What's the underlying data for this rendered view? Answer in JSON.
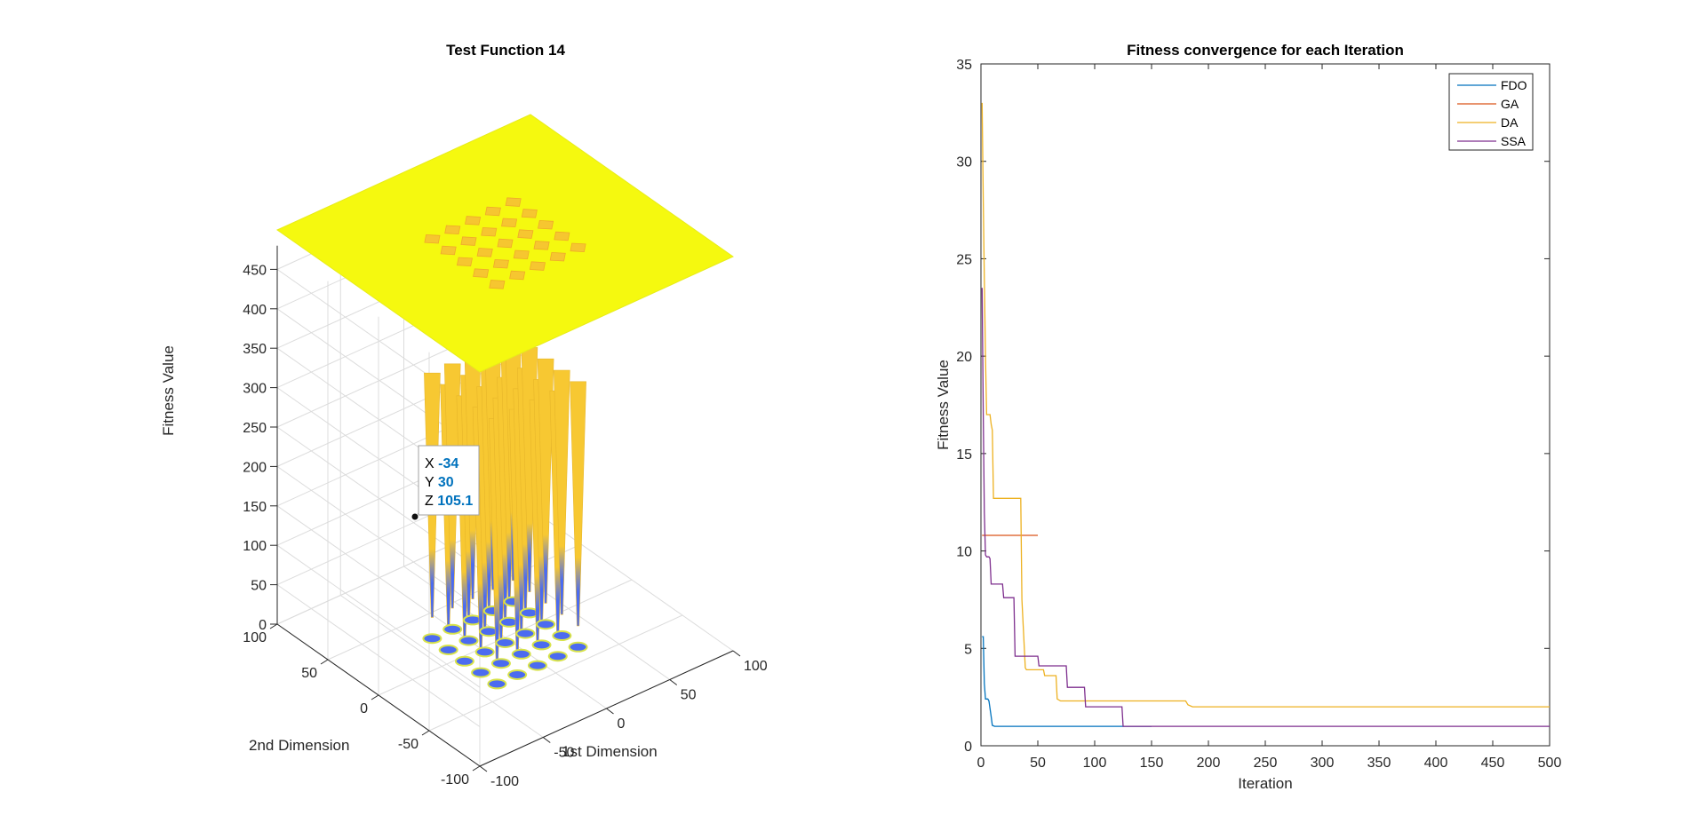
{
  "chart_data": [
    {
      "type": "surface",
      "title": "Test Function 14",
      "xlabel": "1st Dimension",
      "ylabel": "2nd Dimension",
      "zlabel": "Fitness Value",
      "xticks": [
        -100,
        -50,
        0,
        50,
        100
      ],
      "yticks": [
        -100,
        -50,
        0,
        50,
        100
      ],
      "zticks": [
        0,
        50,
        100,
        150,
        200,
        250,
        300,
        350,
        400,
        450
      ],
      "xlim": [
        -100,
        100
      ],
      "ylim": [
        -100,
        100
      ],
      "zlim": [
        0,
        500
      ],
      "grid": true,
      "minima_grid": [
        -32,
        -16,
        0,
        16,
        32
      ],
      "surface_color_top": "#F5F90F",
      "surface_color_mid": "#F7C832",
      "surface_color_low": "#4B6BF0",
      "datatip": {
        "x_label": "X",
        "x_value": "-34",
        "y_label": "Y",
        "y_value": "30",
        "z_label": "Z",
        "z_value": "105.1"
      }
    },
    {
      "type": "line",
      "title": "Fitness convergence for each Iteration",
      "xlabel": "Iteration",
      "ylabel": "Fitness Value",
      "xlim": [
        0,
        500
      ],
      "ylim": [
        0,
        35
      ],
      "xticks": [
        0,
        50,
        100,
        150,
        200,
        250,
        300,
        350,
        400,
        450,
        500
      ],
      "yticks": [
        0,
        5,
        10,
        15,
        20,
        25,
        30,
        35
      ],
      "legend_position": "top-right",
      "series": [
        {
          "name": "FDO",
          "color": "#0072BD",
          "x": [
            1,
            2,
            3,
            4,
            6,
            7,
            9,
            10,
            12,
            100,
            125,
            150
          ],
          "y": [
            5.6,
            5.6,
            3.2,
            2.4,
            2.4,
            2.3,
            1.5,
            1.05,
            1.0,
            1.0,
            1.0,
            1.0
          ]
        },
        {
          "name": "GA",
          "color": "#D95319",
          "x": [
            1,
            50
          ],
          "y": [
            10.8,
            10.8
          ]
        },
        {
          "name": "DA",
          "color": "#EDB120",
          "x": [
            1,
            2,
            3,
            4,
            5,
            8,
            9,
            10,
            11,
            12,
            35,
            36,
            39,
            40,
            55,
            56,
            66,
            67,
            70,
            180,
            182,
            186,
            500
          ],
          "y": [
            33,
            28,
            24,
            20,
            17,
            17,
            16.5,
            16.2,
            12.7,
            12.7,
            12.7,
            7.5,
            4.0,
            3.9,
            3.9,
            3.6,
            3.6,
            2.4,
            2.3,
            2.3,
            2.1,
            2.0,
            2.0
          ]
        },
        {
          "name": "SSA",
          "color": "#7E2F8E",
          "x": [
            1,
            2,
            3,
            4,
            5,
            6,
            7,
            8,
            9,
            19,
            20,
            29,
            30,
            50,
            51,
            75,
            76,
            91,
            92,
            124,
            125,
            500
          ],
          "y": [
            23.5,
            17,
            12,
            9.8,
            9.7,
            9.7,
            9.7,
            9.6,
            8.3,
            8.3,
            7.6,
            7.6,
            4.6,
            4.6,
            4.1,
            4.1,
            3.0,
            3.0,
            2.0,
            2.0,
            1.0,
            1.0
          ]
        }
      ]
    }
  ]
}
